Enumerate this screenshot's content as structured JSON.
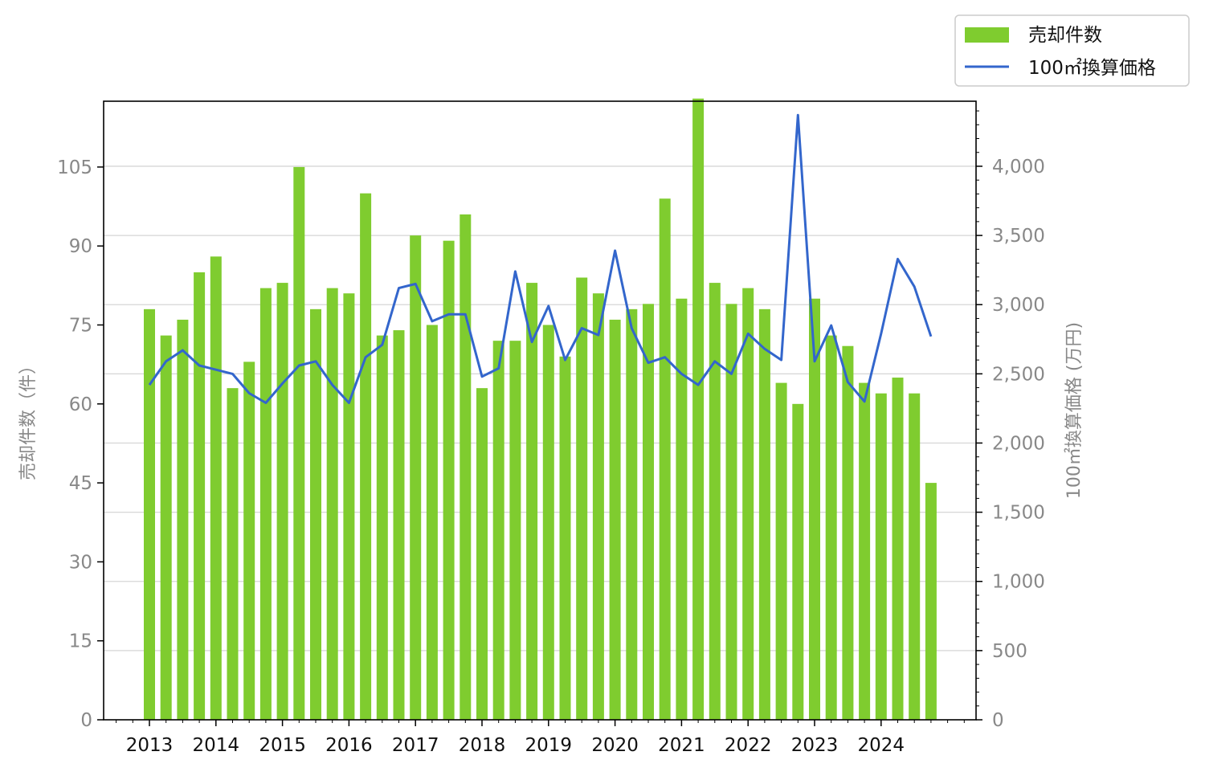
{
  "chart_data": {
    "type": "bar+line",
    "title": "",
    "xlabel": "",
    "x": [
      "2013-01",
      "2013-04",
      "2013-07",
      "2013-10",
      "2014-01",
      "2014-04",
      "2014-07",
      "2014-10",
      "2015-01",
      "2015-04",
      "2015-07",
      "2015-10",
      "2016-01",
      "2016-04",
      "2016-07",
      "2016-10",
      "2017-01",
      "2017-04",
      "2017-07",
      "2017-10",
      "2018-01",
      "2018-04",
      "2018-07",
      "2018-10",
      "2019-01",
      "2019-04",
      "2019-07",
      "2019-10",
      "2020-01",
      "2020-04",
      "2020-07",
      "2020-10",
      "2021-01",
      "2021-04",
      "2021-07",
      "2021-10",
      "2022-01",
      "2022-04",
      "2022-07",
      "2022-10",
      "2023-01",
      "2023-04",
      "2023-07",
      "2023-10",
      "2024-01",
      "2024-04",
      "2024-07",
      "2024-10"
    ],
    "x_tick_labels": [
      "2013",
      "2014",
      "2015",
      "2016",
      "2017",
      "2018",
      "2019",
      "2020",
      "2021",
      "2022",
      "2023",
      "2024"
    ],
    "y_left": {
      "label": "売却件数（件）",
      "ylim": [
        0,
        117.5
      ],
      "ticks": [
        "0",
        "15",
        "30",
        "45",
        "60",
        "75",
        "90",
        "105"
      ]
    },
    "y_right": {
      "label": "100㎡換算価格 (万円)",
      "ylim": [
        0,
        4470
      ],
      "ticks": [
        "0",
        "500",
        "1,000",
        "1,500",
        "2,000",
        "2,500",
        "3,000",
        "3,500",
        "4,000"
      ]
    },
    "grid": "horizontal (right axis)",
    "legend_position": "top-right, above plot",
    "series": [
      {
        "name": "売却件数",
        "type": "bar",
        "axis": "left",
        "color": "#7fcc2f",
        "values": [
          78,
          73,
          76,
          85,
          88,
          63,
          68,
          82,
          83,
          105,
          78,
          82,
          81,
          100,
          73,
          74,
          92,
          75,
          91,
          96,
          63,
          72,
          72,
          83,
          75,
          69,
          84,
          81,
          76,
          78,
          79,
          99,
          80,
          118,
          83,
          79,
          82,
          78,
          64,
          60,
          80,
          73,
          71,
          64,
          62,
          65,
          62,
          45
        ]
      },
      {
        "name": "100㎡換算価格",
        "type": "line",
        "axis": "right",
        "color": "#3366cc",
        "values": [
          2420,
          2590,
          2670,
          2560,
          2530,
          2500,
          2360,
          2290,
          2430,
          2560,
          2590,
          2420,
          2290,
          2620,
          2710,
          3120,
          3150,
          2880,
          2930,
          2930,
          2480,
          2540,
          3240,
          2730,
          2990,
          2600,
          2830,
          2780,
          3390,
          2830,
          2580,
          2620,
          2500,
          2420,
          2590,
          2500,
          2790,
          2680,
          2600,
          4370,
          2590,
          2850,
          2440,
          2300,
          2790,
          3330,
          3130,
          2770
        ]
      }
    ]
  }
}
